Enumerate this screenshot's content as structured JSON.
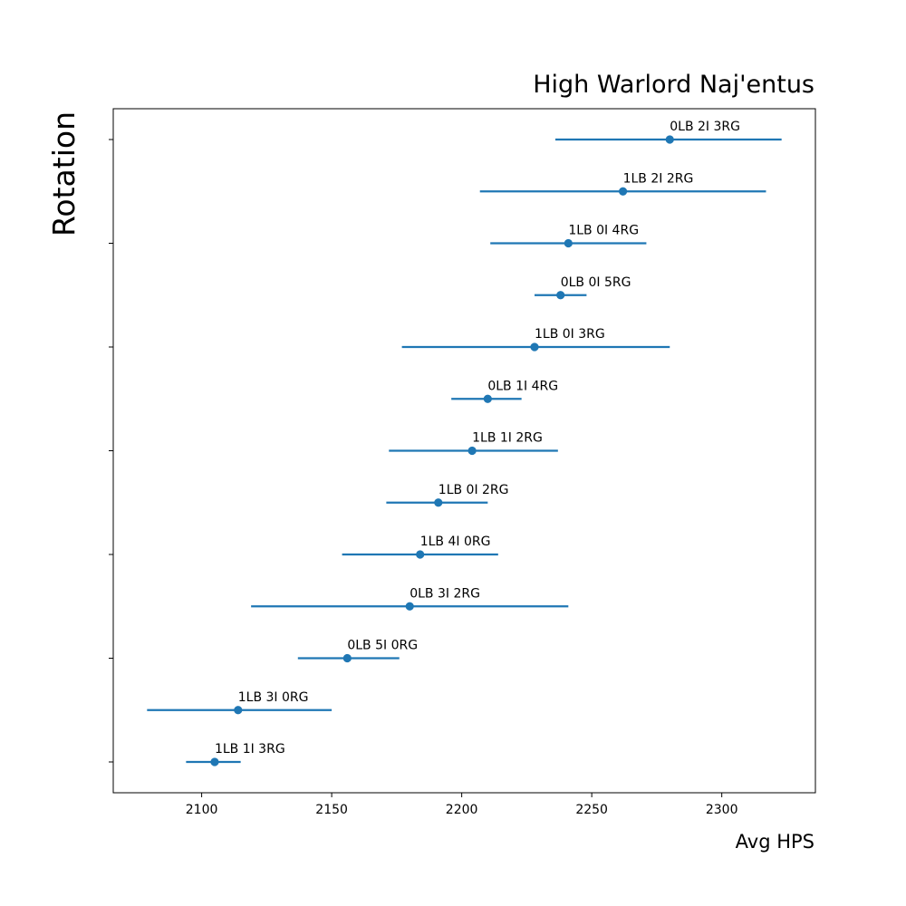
{
  "chart_data": {
    "type": "scatter",
    "title": "High Warlord Naj'entus",
    "xlabel": "Avg HPS",
    "ylabel": "Rotation",
    "xlim": [
      2066,
      2336
    ],
    "x_ticks": [
      2100,
      2150,
      2200,
      2250,
      2300
    ],
    "grid": false,
    "color": "#1f77b4",
    "points": [
      {
        "label": "0LB 2I 3RG",
        "x": 2280,
        "low": 2236,
        "high": 2323
      },
      {
        "label": "1LB 2I 2RG",
        "x": 2262,
        "low": 2207,
        "high": 2317
      },
      {
        "label": "1LB 0I 4RG",
        "x": 2241,
        "low": 2211,
        "high": 2271
      },
      {
        "label": "0LB 0I 5RG",
        "x": 2238,
        "low": 2228,
        "high": 2248
      },
      {
        "label": "1LB 0I 3RG",
        "x": 2228,
        "low": 2177,
        "high": 2280
      },
      {
        "label": "0LB 1I 4RG",
        "x": 2210,
        "low": 2196,
        "high": 2223
      },
      {
        "label": "1LB 1I 2RG",
        "x": 2204,
        "low": 2172,
        "high": 2237
      },
      {
        "label": "1LB 0I 2RG",
        "x": 2191,
        "low": 2171,
        "high": 2210
      },
      {
        "label": "1LB 4I 0RG",
        "x": 2184,
        "low": 2154,
        "high": 2214
      },
      {
        "label": "0LB 3I 2RG",
        "x": 2180,
        "low": 2119,
        "high": 2241
      },
      {
        "label": "0LB 5I 0RG",
        "x": 2156,
        "low": 2137,
        "high": 2176
      },
      {
        "label": "1LB 3I 0RG",
        "x": 2114,
        "low": 2079,
        "high": 2150
      },
      {
        "label": "1LB 1I 3RG",
        "x": 2105,
        "low": 2094,
        "high": 2115
      }
    ]
  }
}
